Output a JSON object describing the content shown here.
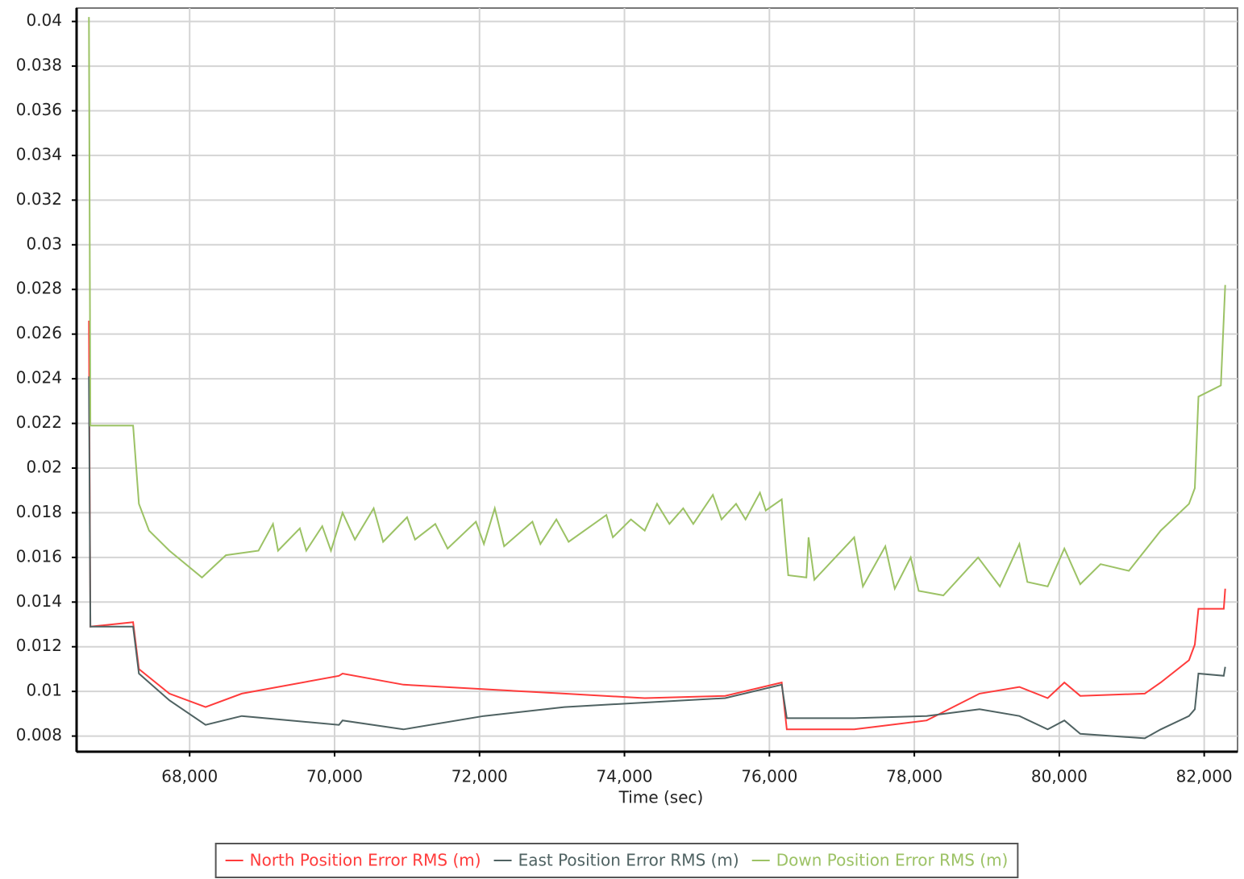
{
  "chart_data": {
    "type": "line",
    "x_label": "Time (sec)",
    "xlim": [
      66440,
      82460
    ],
    "ylim": [
      0.0073,
      0.0406
    ],
    "xticks": [
      {
        "value": 68000,
        "label": "68,000"
      },
      {
        "value": 70000,
        "label": "70,000"
      },
      {
        "value": 72000,
        "label": "72,000"
      },
      {
        "value": 74000,
        "label": "74,000"
      },
      {
        "value": 76000,
        "label": "76,000"
      },
      {
        "value": 78000,
        "label": "78,000"
      },
      {
        "value": 80000,
        "label": "80,000"
      },
      {
        "value": 82000,
        "label": "82,000"
      }
    ],
    "yticks": [
      0.008,
      0.01,
      0.012,
      0.014,
      0.016,
      0.018,
      0.02,
      0.022,
      0.024,
      0.026,
      0.028,
      0.03,
      0.032,
      0.034,
      0.036,
      0.038,
      0.04
    ],
    "grid": true,
    "legend": "bottom",
    "series": [
      {
        "name": "North Position Error RMS (m)",
        "color": "#ff3b3b",
        "x": [
          66610,
          66630,
          67220,
          67300,
          67720,
          68220,
          68720,
          70060,
          70110,
          70950,
          72060,
          73170,
          74280,
          75390,
          76170,
          76240,
          77170,
          78170,
          78900,
          79450,
          79840,
          80070,
          80290,
          81180,
          81400,
          81790,
          81870,
          81920,
          82270,
          82290
        ],
        "values": [
          0.0266,
          0.0129,
          0.0131,
          0.011,
          0.0099,
          0.0093,
          0.0099,
          0.0107,
          0.0108,
          0.0103,
          0.0101,
          0.0099,
          0.0097,
          0.0098,
          0.0104,
          0.0083,
          0.0083,
          0.0087,
          0.0099,
          0.0102,
          0.0097,
          0.0104,
          0.0098,
          0.0099,
          0.0104,
          0.0114,
          0.0121,
          0.0137,
          0.0137,
          0.0146
        ]
      },
      {
        "name": "East Position Error RMS (m)",
        "color": "#4f6262",
        "x": [
          66610,
          66630,
          67220,
          67300,
          67720,
          68220,
          68720,
          70060,
          70110,
          70950,
          72060,
          73170,
          74280,
          75390,
          76170,
          76240,
          77170,
          78170,
          78900,
          79450,
          79840,
          80070,
          80290,
          81180,
          81400,
          81790,
          81870,
          81920,
          82270,
          82290
        ],
        "values": [
          0.0241,
          0.0129,
          0.0129,
          0.0108,
          0.0096,
          0.0085,
          0.0089,
          0.0085,
          0.0087,
          0.0083,
          0.0089,
          0.0093,
          0.0095,
          0.0097,
          0.0103,
          0.0088,
          0.0088,
          0.0089,
          0.0092,
          0.0089,
          0.0083,
          0.0087,
          0.0081,
          0.0079,
          0.0083,
          0.0089,
          0.0092,
          0.0108,
          0.0107,
          0.0111
        ]
      },
      {
        "name": "Down Position Error RMS (m)",
        "color": "#9cc265",
        "x": [
          66610,
          66630,
          67220,
          67300,
          67440,
          67720,
          68170,
          68500,
          68950,
          69150,
          69220,
          69520,
          69610,
          69830,
          69950,
          70110,
          70280,
          70540,
          70670,
          71000,
          71110,
          71390,
          71560,
          71950,
          72060,
          72210,
          72340,
          72730,
          72840,
          73060,
          73230,
          73750,
          73840,
          74090,
          74280,
          74450,
          74620,
          74810,
          74950,
          75220,
          75340,
          75540,
          75670,
          75870,
          75950,
          76170,
          76260,
          76510,
          76540,
          76620,
          77170,
          77290,
          77600,
          77730,
          77950,
          78060,
          78400,
          78880,
          79180,
          79450,
          79560,
          79840,
          80070,
          80290,
          80570,
          80960,
          81400,
          81790,
          81870,
          81920,
          82230,
          82290
        ],
        "values": [
          0.0402,
          0.0219,
          0.0219,
          0.0184,
          0.0172,
          0.0163,
          0.0151,
          0.0161,
          0.0163,
          0.0175,
          0.0163,
          0.0173,
          0.0163,
          0.0174,
          0.0163,
          0.018,
          0.0168,
          0.0182,
          0.0167,
          0.0178,
          0.0168,
          0.0175,
          0.0164,
          0.0176,
          0.0166,
          0.0182,
          0.0165,
          0.0176,
          0.0166,
          0.0177,
          0.0167,
          0.0179,
          0.0169,
          0.0177,
          0.0172,
          0.0184,
          0.0175,
          0.0182,
          0.0175,
          0.0188,
          0.0177,
          0.0184,
          0.0177,
          0.0189,
          0.0181,
          0.0186,
          0.0152,
          0.0151,
          0.0169,
          0.015,
          0.0169,
          0.0147,
          0.0165,
          0.0146,
          0.016,
          0.0145,
          0.0143,
          0.016,
          0.0147,
          0.0166,
          0.0149,
          0.0147,
          0.0164,
          0.0148,
          0.0157,
          0.0154,
          0.0172,
          0.0184,
          0.0191,
          0.0232,
          0.0237,
          0.0282
        ]
      }
    ]
  }
}
